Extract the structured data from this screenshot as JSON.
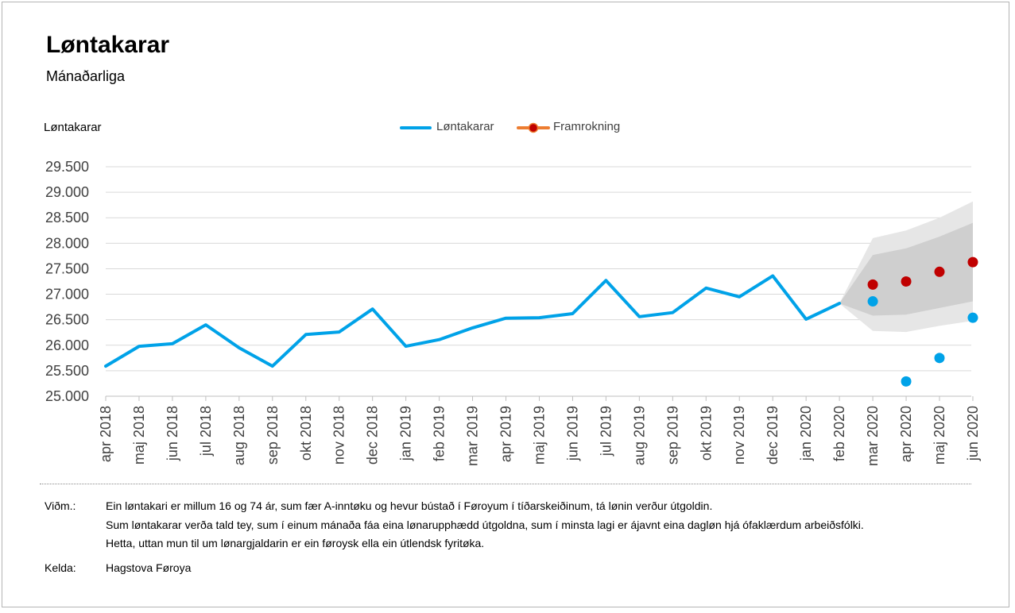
{
  "header": {
    "title": "Løntakarar",
    "subtitle": "Mánaðarliga"
  },
  "legend": {
    "items": [
      {
        "label": "Løntakarar",
        "color": "#00a2e8"
      },
      {
        "label": "Framrokning",
        "color": "#ed7d31",
        "marker_color": "#c00000"
      }
    ]
  },
  "chart_data": {
    "type": "line",
    "ylabel": "Løntakarar",
    "ylim": [
      25000,
      29500
    ],
    "yticks": [
      25000,
      25500,
      26000,
      26500,
      27000,
      27500,
      28000,
      28500,
      29000,
      29500
    ],
    "ytick_labels": [
      "25.000",
      "25.500",
      "26.000",
      "26.500",
      "27.000",
      "27.500",
      "28.000",
      "28.500",
      "29.000",
      "29.500"
    ],
    "grid": true,
    "legend_position": "top-center",
    "categories": [
      "apr 2018",
      "maj 2018",
      "jun 2018",
      "jul 2018",
      "aug 2018",
      "sep 2018",
      "okt 2018",
      "nov 2018",
      "dec 2018",
      "jan 2019",
      "feb 2019",
      "mar 2019",
      "apr 2019",
      "maj 2019",
      "jun 2019",
      "jul 2019",
      "aug 2019",
      "sep 2019",
      "okt 2019",
      "nov 2019",
      "dec 2019",
      "jan 2020",
      "feb 2020",
      "mar 2020",
      "apr 2020",
      "maj 2020",
      "jun 2020"
    ],
    "series": [
      {
        "name": "Løntakarar",
        "color": "#00a2e8",
        "values": [
          25590,
          25980,
          26030,
          26400,
          25950,
          25590,
          26210,
          26260,
          26710,
          25980,
          26110,
          26340,
          26530,
          26540,
          26620,
          27270,
          26560,
          26640,
          27120,
          26950,
          27360,
          26510,
          26820,
          null,
          null,
          null,
          null
        ]
      },
      {
        "name": "Løntakarar (punktar)",
        "color": "#00a2e8",
        "values": [
          null,
          null,
          null,
          null,
          null,
          null,
          null,
          null,
          null,
          null,
          null,
          null,
          null,
          null,
          null,
          null,
          null,
          null,
          null,
          null,
          null,
          null,
          null,
          26860,
          25290,
          25750,
          26540
        ]
      },
      {
        "name": "Framrokning",
        "color": "#c00000",
        "values": [
          null,
          null,
          null,
          null,
          null,
          null,
          null,
          null,
          null,
          null,
          null,
          null,
          null,
          null,
          null,
          null,
          null,
          null,
          null,
          null,
          null,
          null,
          null,
          27190,
          27250,
          27440,
          27630
        ]
      }
    ],
    "bands": [
      {
        "level": "outer",
        "color": "#e6e6e6",
        "start": 22,
        "upper": [
          26820,
          28100,
          28250,
          28500,
          28820
        ],
        "lower": [
          26820,
          26280,
          26260,
          26380,
          26480
        ]
      },
      {
        "level": "inner",
        "color": "#cfcfcf",
        "start": 22,
        "upper": [
          26820,
          27770,
          27900,
          28130,
          28400
        ],
        "lower": [
          26820,
          26580,
          26600,
          26730,
          26860
        ]
      }
    ]
  },
  "notes": {
    "vidm_label": "Viðm.:",
    "vidm_lines": [
      "Ein løntakari er millum 16 og 74 ár, sum fær A-inntøku og hevur bústað í Føroyum í tíðarskeiðinum, tá lønin verður útgoldin.",
      "Sum løntakarar verða tald tey, sum í einum mánaða fáa eina lønarupphædd útgoldna, sum í minsta lagi er ájavnt eina dagløn hjá ófaklærdum arbeiðsfólki.",
      "Hetta, uttan mun til um lønargjaldarin er ein føroysk ella ein útlendsk fyritøka."
    ],
    "kelda_label": "Kelda:",
    "kelda_text": "Hagstova Føroya"
  }
}
